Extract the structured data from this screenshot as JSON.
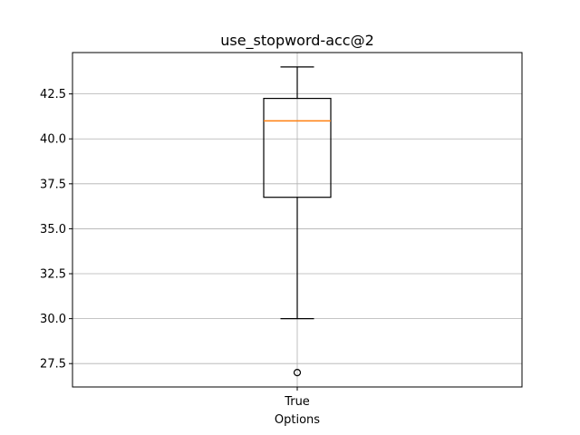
{
  "chart_data": {
    "type": "box",
    "title": "use_stopword-acc@2",
    "xlabel": "Options",
    "ylabel": "",
    "categories": [
      "True"
    ],
    "boxes": [
      {
        "category": "True",
        "whisker_low": 30.0,
        "q1": 36.75,
        "median": 41.0,
        "q3": 42.25,
        "whisker_high": 44.0,
        "outliers": [
          27.0
        ]
      }
    ],
    "ylim": [
      26.2,
      44.8
    ],
    "yticks": [
      27.5,
      30.0,
      32.5,
      35.0,
      37.5,
      40.0,
      42.5
    ],
    "ytick_labels": [
      "27.5",
      "30.0",
      "32.5",
      "35.0",
      "37.5",
      "40.0",
      "42.5"
    ],
    "grid": true,
    "colors": {
      "box": "#000000",
      "median": "#ff7f0e",
      "grid": "#b0b0b0"
    }
  }
}
